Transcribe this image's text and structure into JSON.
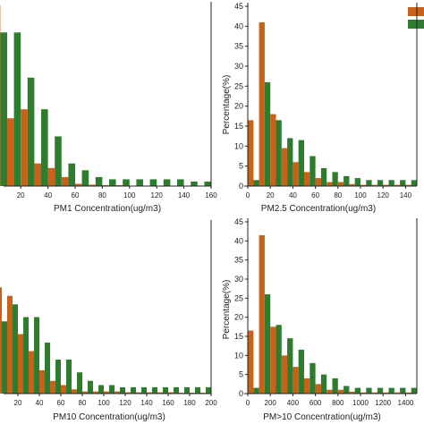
{
  "colors": {
    "series_a": "#c8621a",
    "series_b": "#2e7d2e",
    "axis": "#222222"
  },
  "chart_data": [
    {
      "type": "bar",
      "xlabel": "PM1 Concentration(ug/m3)",
      "ylabel": "",
      "xlim": [
        0,
        160
      ],
      "x_ticks": [
        "20",
        "40",
        "60",
        "80",
        "100",
        "120",
        "140",
        "160"
      ],
      "y_ticks": [],
      "ylim": [
        0,
        40
      ],
      "bin_width": 10,
      "categories": [
        5,
        15,
        25,
        35,
        45,
        55,
        65,
        75,
        85,
        95,
        105,
        115,
        125,
        135,
        145,
        155
      ],
      "series": [
        {
          "values": [
            40,
            15,
            17,
            5,
            4,
            2,
            0.5,
            0.3,
            0.2,
            0.2,
            0.1,
            0.1,
            0.1,
            0.1,
            0.1,
            0.1
          ]
        },
        {
          "values": [
            34,
            34,
            24,
            17,
            11,
            5,
            3.5,
            2,
            1.5,
            1.5,
            1.5,
            1.5,
            1.5,
            1.5,
            1,
            1
          ]
        }
      ]
    },
    {
      "type": "bar",
      "xlabel": "PM2.5 Concentration(ug/m3)",
      "ylabel": "Percentage(%)",
      "xlim": [
        0,
        150
      ],
      "x_ticks": [
        "0",
        "20",
        "40",
        "60",
        "80",
        "100",
        "120",
        "140"
      ],
      "y_ticks": [
        "0",
        "5",
        "10",
        "15",
        "20",
        "25",
        "30",
        "35",
        "40",
        "45"
      ],
      "ylim": [
        0,
        45
      ],
      "bin_width": 10,
      "categories": [
        5,
        15,
        25,
        35,
        45,
        55,
        65,
        75,
        85,
        95,
        105,
        115,
        125,
        135,
        145
      ],
      "series": [
        {
          "values": [
            16.5,
            41,
            18,
            9.5,
            6,
            3.5,
            2,
            1,
            1,
            0.5,
            0.3,
            0.3,
            0.3,
            0.3,
            0.3
          ]
        },
        {
          "values": [
            1.5,
            26,
            16.5,
            12,
            11.5,
            7.5,
            4.5,
            3.5,
            2.5,
            2,
            1.5,
            1.5,
            1.5,
            1.5,
            1.5
          ]
        }
      ]
    },
    {
      "type": "bar",
      "xlabel": "PM10 Concentration(ug/m3)",
      "ylabel": "",
      "xlim": [
        0,
        200
      ],
      "x_ticks": [
        "20",
        "40",
        "60",
        "80",
        "100",
        "120",
        "140",
        "160",
        "180",
        "200"
      ],
      "y_ticks": [],
      "ylim": [
        0,
        40
      ],
      "bin_width": 10,
      "categories": [
        5,
        15,
        25,
        35,
        45,
        55,
        65,
        75,
        85,
        95,
        105,
        115,
        125,
        135,
        145,
        155,
        165,
        175,
        185,
        195
      ],
      "series": [
        {
          "values": [
            25,
            23,
            14,
            10,
            5.5,
            3,
            2,
            1,
            0.5,
            0.5,
            0.5,
            0.5,
            0.3,
            0.3,
            0.3,
            0.3,
            0.3,
            0.2,
            0.2,
            0.2
          ]
        },
        {
          "values": [
            17,
            21,
            18,
            18,
            12,
            8,
            8,
            5,
            3,
            2,
            2,
            1.5,
            1.5,
            1.5,
            1.5,
            1.5,
            1.5,
            1.5,
            1.5,
            1.5
          ]
        }
      ]
    },
    {
      "type": "bar",
      "xlabel": "PM>10 Concentration(ug/m3)",
      "ylabel": "Percentage(%)",
      "xlim": [
        0,
        1500
      ],
      "x_ticks": [
        "0",
        "200",
        "400",
        "600",
        "800",
        "1000",
        "1200",
        "1400"
      ],
      "y_ticks": [
        "0",
        "5",
        "10",
        "15",
        "20",
        "25",
        "30",
        "35",
        "40",
        "45"
      ],
      "ylim": [
        0,
        45
      ],
      "bin_width": 100,
      "categories": [
        50,
        150,
        250,
        350,
        450,
        550,
        650,
        750,
        850,
        950,
        1050,
        1150,
        1250,
        1350,
        1450
      ],
      "series": [
        {
          "values": [
            16.5,
            41.5,
            17.5,
            10,
            7,
            4,
            2.5,
            1,
            1,
            0.5,
            0.3,
            0.3,
            0.3,
            0.3,
            0.3
          ]
        },
        {
          "values": [
            1.5,
            26,
            18,
            14.5,
            11.5,
            8,
            5,
            4,
            2,
            1.5,
            1.5,
            1.5,
            1.5,
            1.5,
            1.5
          ]
        }
      ]
    }
  ]
}
